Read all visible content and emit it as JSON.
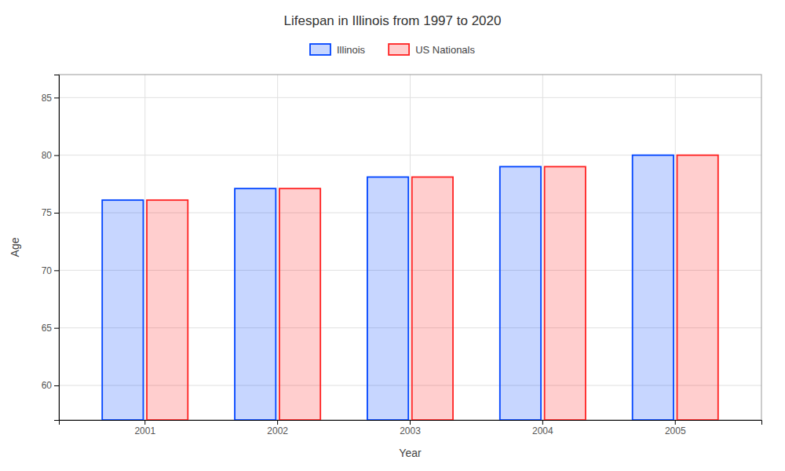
{
  "chart_data": {
    "type": "bar",
    "title": "Lifespan in Illinois from 1997 to 2020",
    "x_label": "Year",
    "y_label": "Age",
    "categories": [
      "2001",
      "2002",
      "2003",
      "2004",
      "2005"
    ],
    "series": [
      {
        "name": "Illinois",
        "color": "#0044ff",
        "values": [
          76.1,
          77.1,
          78.1,
          79.0,
          80.0
        ]
      },
      {
        "name": "US Nationals",
        "color": "#ff2222",
        "values": [
          76.1,
          77.1,
          78.1,
          79.0,
          80.0
        ]
      }
    ],
    "ylim": [
      57,
      87
    ],
    "yticks": [
      60,
      65,
      70,
      75,
      80,
      85
    ],
    "grid": true,
    "legend": "top"
  }
}
